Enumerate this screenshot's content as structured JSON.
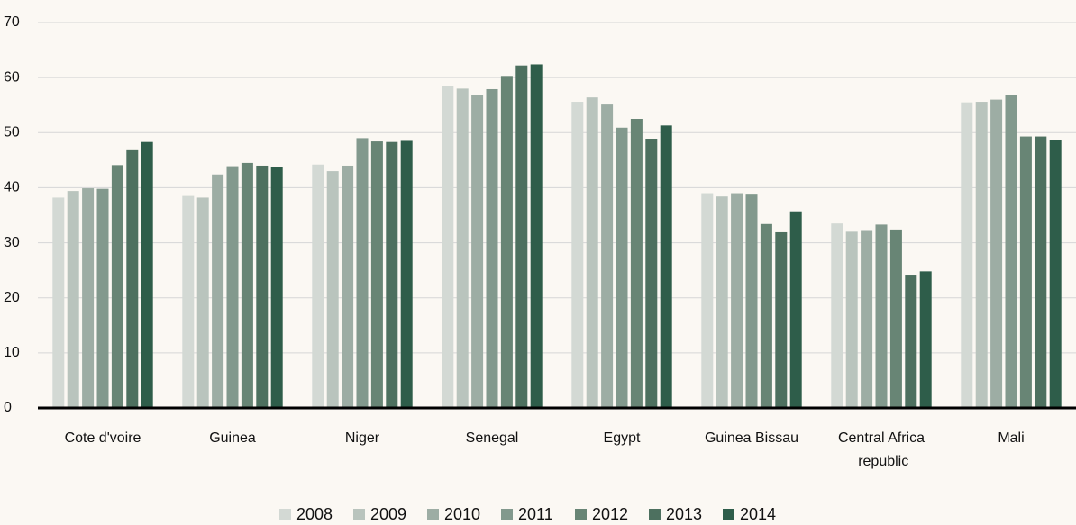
{
  "chart_data": {
    "type": "bar",
    "categories": [
      "Cote d'voire",
      "Guinea",
      "Niger",
      "Senegal",
      "Egypt",
      "Guinea Bissau",
      "Central Africa republic",
      "Mali"
    ],
    "series": [
      {
        "name": "2008",
        "color": "#d3d9d4",
        "values": [
          38.2,
          38.5,
          44.2,
          58.4,
          55.6,
          39.0,
          33.5,
          55.5
        ]
      },
      {
        "name": "2009",
        "color": "#b9c4bd",
        "values": [
          39.4,
          38.2,
          43.0,
          58.0,
          56.4,
          38.4,
          32.0,
          55.6
        ]
      },
      {
        "name": "2010",
        "color": "#9dada4",
        "values": [
          39.9,
          42.4,
          44.0,
          56.8,
          55.1,
          39.0,
          32.3,
          56.0
        ]
      },
      {
        "name": "2011",
        "color": "#82998d",
        "values": [
          39.8,
          43.9,
          49.0,
          57.9,
          50.9,
          38.9,
          33.3,
          56.8
        ]
      },
      {
        "name": "2012",
        "color": "#688575",
        "values": [
          44.1,
          44.5,
          48.4,
          60.3,
          52.5,
          33.4,
          32.4,
          49.3
        ]
      },
      {
        "name": "2013",
        "color": "#4d705f",
        "values": [
          46.8,
          44.0,
          48.3,
          62.2,
          48.9,
          31.9,
          24.2,
          49.3
        ]
      },
      {
        "name": "2014",
        "color": "#2e5d4a",
        "values": [
          48.3,
          43.8,
          48.5,
          62.4,
          51.3,
          35.7,
          24.8,
          48.7
        ]
      }
    ],
    "ylim": [
      0,
      70
    ],
    "yticks": [
      0,
      10,
      20,
      30,
      40,
      50,
      60,
      70
    ],
    "grid": true,
    "legend": "bottom"
  }
}
